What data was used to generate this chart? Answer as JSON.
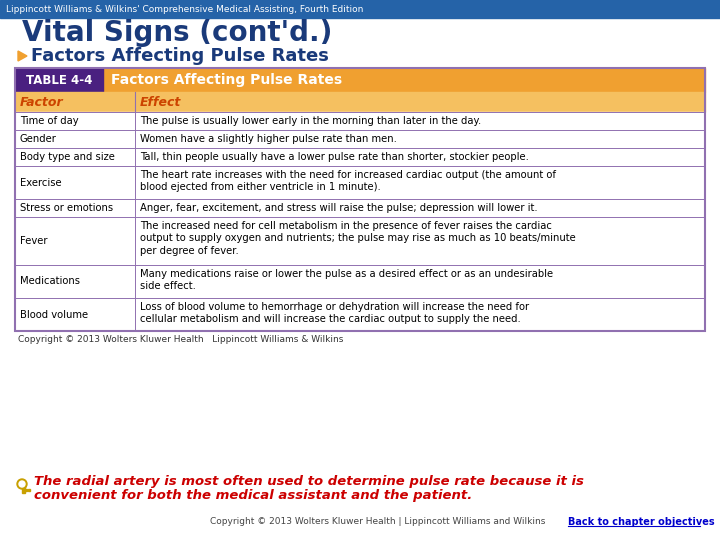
{
  "header_bar_text": "Lippincott Williams & Wilkins' Comprehensive Medical Assisting, Fourth Edition",
  "title": "Vital Signs (cont'd.)",
  "bullet_label": "Factors Affecting Pulse Rates",
  "table_label": "TABLE 4-4",
  "table_title": "Factors Affecting Pulse Rates",
  "col_headers": [
    "Factor",
    "Effect"
  ],
  "rows": [
    [
      "Time of day",
      "The pulse is usually lower early in the morning than later in the day."
    ],
    [
      "Gender",
      "Women have a slightly higher pulse rate than men."
    ],
    [
      "Body type and size",
      "Tall, thin people usually have a lower pulse rate than shorter, stockier people."
    ],
    [
      "Exercise",
      "The heart rate increases with the need for increased cardiac output (the amount of\nblood ejected from either ventricle in 1 minute)."
    ],
    [
      "Stress or emotions",
      "Anger, fear, excitement, and stress will raise the pulse; depression will lower it."
    ],
    [
      "Fever",
      "The increased need for cell metabolism in the presence of fever raises the cardiac\noutput to supply oxygen and nutrients; the pulse may rise as much as 10 beats/minute\nper degree of fever."
    ],
    [
      "Medications",
      "Many medications raise or lower the pulse as a desired effect or as an undesirable\nside effect."
    ],
    [
      "Blood volume",
      "Loss of blood volume to hemorrhage or dehydration will increase the need for\ncellular metabolism and will increase the cardiac output to supply the need."
    ]
  ],
  "footnote": "Copyright © 2013 Wolters Kluwer Health   Lippincott Williams & Wilkins",
  "bottom_note_line1": "The radial artery is most often used to determine pulse rate because it is",
  "bottom_note_line2": "convenient for both the medical assistant and the patient.",
  "bottom_copyright": "Copyright © 2013 Wolters Kluwer Health | Lippincott Williams and Wilkins",
  "back_link": "Back to chapter objectives",
  "colors": {
    "header_bar_bg": "#2563a8",
    "header_bar_text": "#ffffff",
    "title_text": "#1a3a7a",
    "background": "#ffffff",
    "table_header_bg": "#f0a030",
    "table_label_bg": "#4a2080",
    "table_label_text": "#ffffff",
    "col_header_text": "#cc4400",
    "row_text": "#000000",
    "divider": "#9070b0",
    "table_border": "#9070b0",
    "footnote_text": "#333333",
    "bottom_note_text": "#cc0000",
    "bottom_copyright_text": "#444444",
    "back_link_text": "#0000cc",
    "bullet_color": "#f0a030"
  }
}
